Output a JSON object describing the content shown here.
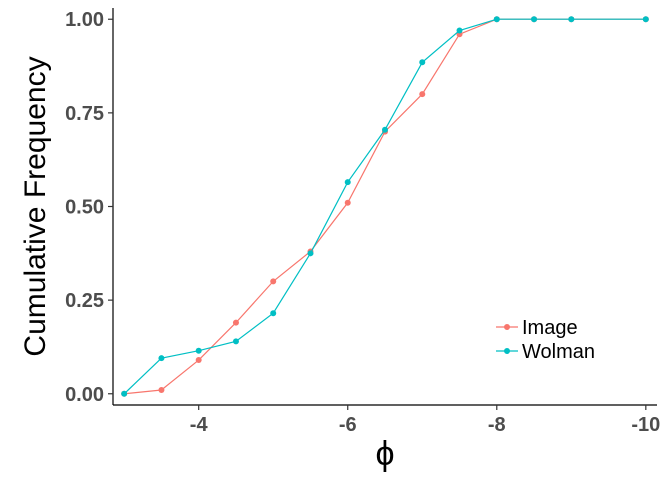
{
  "chart_data": {
    "type": "line",
    "xlabel": "ϕ",
    "ylabel": "Cumulative Frequency",
    "xlim": [
      -2.85,
      -10.15
    ],
    "ylim": [
      -0.03,
      1.03
    ],
    "x_ticks": [
      -4,
      -6,
      -8,
      -10
    ],
    "x_tick_labels": [
      "-4",
      "-6",
      "-8",
      "-10"
    ],
    "y_ticks": [
      0,
      0.25,
      0.5,
      0.75,
      1
    ],
    "y_tick_labels": [
      "0.00",
      "0.25",
      "0.50",
      "0.75",
      "1.00"
    ],
    "grid": false,
    "legend_position": "bottom-right",
    "x": [
      -3,
      -3.5,
      -4,
      -4.5,
      -5,
      -5.5,
      -6,
      -6.5,
      -7,
      -7.5,
      -8,
      -8.5,
      -9,
      -10
    ],
    "series": [
      {
        "name": "Image",
        "color": "#F8766D",
        "values": [
          0.0,
          0.01,
          0.09,
          0.19,
          0.3,
          0.38,
          0.51,
          0.7,
          0.8,
          0.96,
          1.0,
          1.0,
          1.0,
          1.0
        ]
      },
      {
        "name": "Wolman",
        "color": "#00BFC4",
        "values": [
          0.0,
          0.095,
          0.115,
          0.14,
          0.215,
          0.375,
          0.565,
          0.705,
          0.885,
          0.97,
          1.0,
          1.0,
          1.0,
          1.0
        ]
      }
    ]
  }
}
